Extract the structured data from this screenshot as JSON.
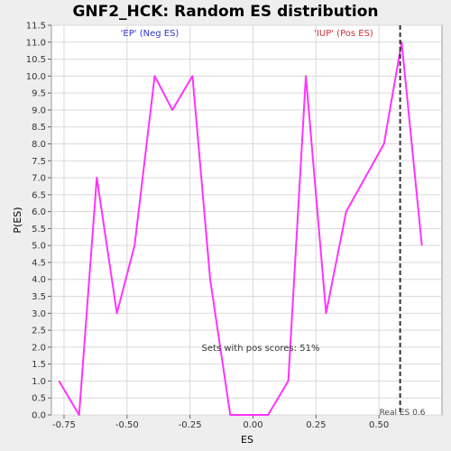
{
  "chart_data": {
    "type": "line",
    "title": "GNF2_HCK: Random ES distribution",
    "xlabel": "ES",
    "ylabel": "P(ES)",
    "xlim": [
      -0.8,
      0.75
    ],
    "ylim": [
      0,
      11.5
    ],
    "x_ticks": [
      -0.75,
      -0.5,
      -0.25,
      0.0,
      0.25,
      0.5
    ],
    "x_tick_labels": [
      "-0.75",
      "-0.50",
      "-0.25",
      "0.00",
      "0.25",
      "0.50"
    ],
    "y_ticks": [
      0.0,
      0.5,
      1.0,
      1.5,
      2.0,
      2.5,
      3.0,
      3.5,
      4.0,
      4.5,
      5.0,
      5.5,
      6.0,
      6.5,
      7.0,
      7.5,
      8.0,
      8.5,
      9.0,
      9.5,
      10.0,
      10.5,
      11.0,
      11.5
    ],
    "y_tick_labels": [
      "0.0",
      "0.5",
      "1.0",
      "1.5",
      "2.0",
      "2.5",
      "3.0",
      "3.5",
      "4.0",
      "4.5",
      "5.0",
      "5.5",
      "6.0",
      "6.5",
      "7.0",
      "7.5",
      "8.0",
      "8.5",
      "9.0",
      "9.5",
      "10.0",
      "10.5",
      "11.0",
      "11.5"
    ],
    "grid": true,
    "series": [
      {
        "color": "#ff33ff",
        "x": [
          -0.77,
          -0.69,
          -0.62,
          -0.54,
          -0.47,
          -0.39,
          -0.32,
          -0.24,
          -0.17,
          -0.09,
          -0.02,
          0.06,
          0.14,
          0.21,
          0.29,
          0.37,
          0.52,
          0.59,
          0.67
        ],
        "y": [
          1.0,
          0.0,
          7.0,
          3.0,
          5.0,
          10.0,
          9.0,
          10.0,
          4.0,
          0.0,
          0.0,
          0.0,
          1.0,
          10.0,
          3.0,
          6.0,
          8.0,
          11.0,
          5.0
        ]
      }
    ],
    "reference_line": {
      "x": 0.584,
      "style": "dashed",
      "color": "#333333",
      "label": "Real ES 0.6"
    },
    "annotations": {
      "neg_label": "'EP' (Neg ES)",
      "neg_color": "#3333cc",
      "pos_label": "'IUP' (Pos ES)",
      "pos_color": "#cc3333",
      "sets_text": "Sets with pos scores: 51%"
    }
  }
}
